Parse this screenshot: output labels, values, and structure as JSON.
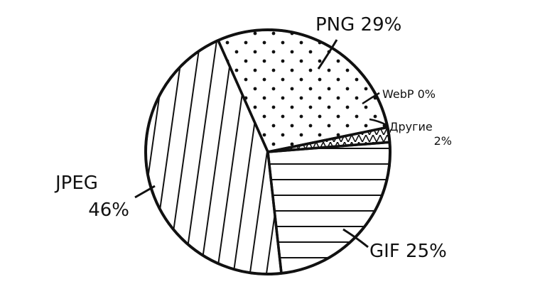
{
  "chart_data": {
    "type": "pie",
    "slices": [
      {
        "label": "PNG",
        "value": 29,
        "value_label": "29%",
        "pattern": "dots"
      },
      {
        "label": "WebP",
        "value": 0,
        "value_label": "0%",
        "pattern": "none"
      },
      {
        "label": "Другие",
        "value": 2,
        "value_label": "2%",
        "pattern": "zigzag"
      },
      {
        "label": "GIF",
        "value": 25,
        "value_label": "25%",
        "pattern": "horizontal-lines"
      },
      {
        "label": "JPEG",
        "value": 46,
        "value_label": "46%",
        "pattern": "vertical-lines"
      }
    ],
    "labels": {
      "png": "PNG 29%",
      "webp": "WebP 0%",
      "other_name": "Другие",
      "other_value": "2%",
      "gif": "GIF 25%",
      "jpeg_name": "JPEG",
      "jpeg_value": "46%"
    },
    "style": "hand-drawn, black ink on white"
  }
}
